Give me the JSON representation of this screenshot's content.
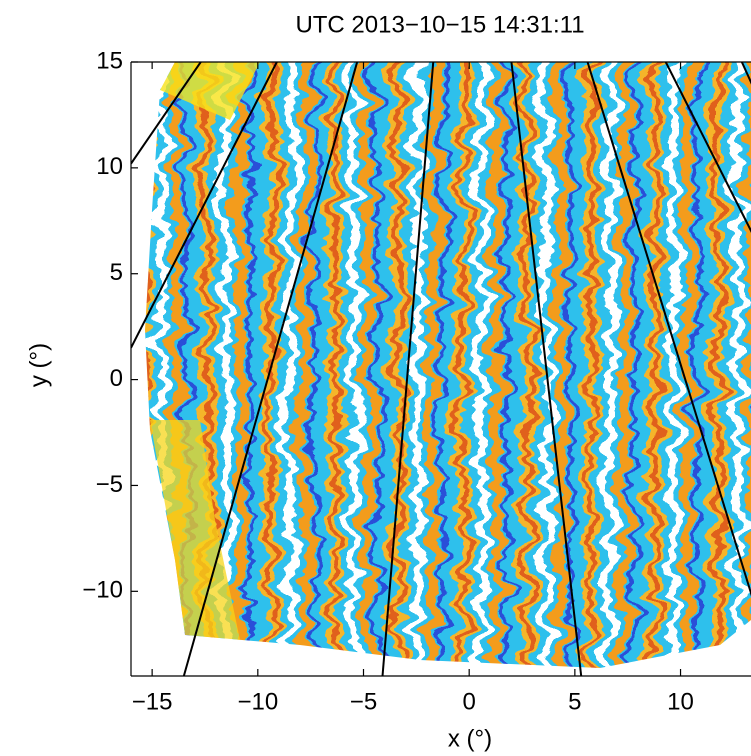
{
  "chart_data": {
    "type": "line",
    "title": "UTC 2013−10−15 14:31:11",
    "x_label": "x (°)",
    "y_label": "y (°)",
    "xlim": [
      -16,
      13.4
    ],
    "ylim": [
      -14,
      15
    ],
    "xticks": [
      {
        "value": -15,
        "label": "−15"
      },
      {
        "value": -10,
        "label": "−10"
      },
      {
        "value": -5,
        "label": "−5"
      },
      0,
      5,
      10
    ],
    "yticks": [
      {
        "value": -10,
        "label": "−10"
      },
      {
        "value": -5,
        "label": "−5"
      },
      0,
      5,
      10,
      15
    ],
    "series": [
      {
        "color": "#000000",
        "x": [
          -16,
          -12.7
        ],
        "values": [
          10.2,
          15
        ]
      },
      {
        "color": "#000000",
        "x": [
          -16,
          -9.1
        ],
        "values": [
          1.5,
          15
        ]
      },
      {
        "color": "#000000",
        "x": [
          -13.5,
          -5.3
        ],
        "values": [
          -14,
          15
        ]
      },
      {
        "color": "#000000",
        "x": [
          -4.1,
          -1.7
        ],
        "values": [
          -14,
          15
        ]
      },
      {
        "color": "#000000",
        "x": [
          5.3,
          2.0
        ],
        "values": [
          -14,
          15
        ]
      },
      {
        "color": "#000000",
        "x": [
          13.4,
          5.6
        ],
        "values": [
          -10.3,
          15
        ]
      },
      {
        "color": "#000000",
        "x": [
          13.4,
          9.3
        ],
        "values": [
          6.9,
          15
        ]
      },
      {
        "color": "#000000",
        "x": [
          12.9,
          13.4
        ],
        "values": [
          15,
          13.9
        ]
      }
    ]
  }
}
